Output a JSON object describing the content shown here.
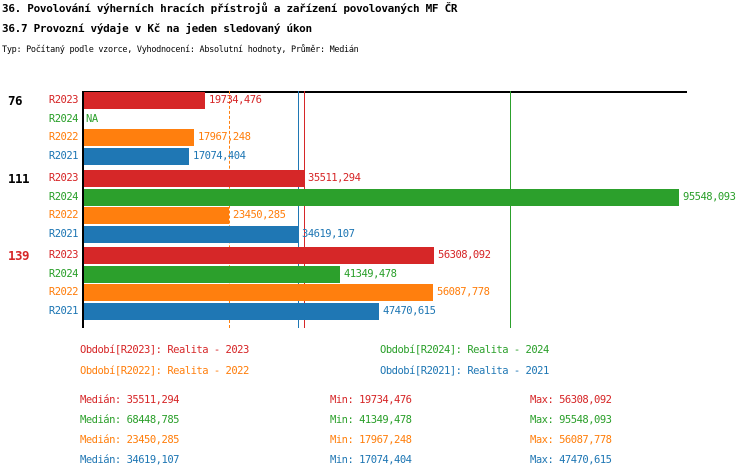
{
  "header": {
    "title": "36. Povolování výherních hracích přístrojů a zařízení povolovaných MF ČR",
    "subtitle": "36.7 Provozní výdaje v Kč na jeden sledovaný úkon",
    "meta": "Typ: Počítaný podle vzorce, Vyhodnocení: Absolutní hodnoty, Průměr: Medián"
  },
  "colors": {
    "R2023": "#d62728",
    "R2024": "#2ca02c",
    "R2022": "#ff7f0e",
    "R2021": "#1f77b4",
    "axis": "#000000",
    "group_label_default": "#000000",
    "group_label_highlight": "#d62728"
  },
  "chart_data": {
    "type": "bar",
    "orientation": "horizontal",
    "title": "36.7 Provozní výdaje v Kč na jeden sledovaný úkon",
    "xlabel": "",
    "ylabel": "",
    "xlim": [
      0,
      96640
    ],
    "grid": false,
    "series_order": [
      "R2023",
      "R2024",
      "R2022",
      "R2021"
    ],
    "groups": [
      {
        "label": "76",
        "label_color": "#000000",
        "bars": [
          {
            "series": "R2023",
            "value": 19734.476,
            "display": "19734,476"
          },
          {
            "series": "R2024",
            "value": null,
            "display": "NA"
          },
          {
            "series": "R2022",
            "value": 17967.248,
            "display": "17967,248"
          },
          {
            "series": "R2021",
            "value": 17074.404,
            "display": "17074,404"
          }
        ]
      },
      {
        "label": "111",
        "label_color": "#000000",
        "bars": [
          {
            "series": "R2023",
            "value": 35511.294,
            "display": "35511,294"
          },
          {
            "series": "R2024",
            "value": 95548.093,
            "display": "95548,093"
          },
          {
            "series": "R2022",
            "value": 23450.285,
            "display": "23450,285"
          },
          {
            "series": "R2021",
            "value": 34619.107,
            "display": "34619,107"
          }
        ]
      },
      {
        "label": "139",
        "label_color": "#d62728",
        "bars": [
          {
            "series": "R2023",
            "value": 56308.092,
            "display": "56308,092"
          },
          {
            "series": "R2024",
            "value": 41349.478,
            "display": "41349,478"
          },
          {
            "series": "R2022",
            "value": 56087.778,
            "display": "56087,778"
          },
          {
            "series": "R2021",
            "value": 47470.615,
            "display": "47470,615"
          }
        ]
      }
    ],
    "median_lines": [
      {
        "series": "R2022",
        "value": 23450.285,
        "style": "dashed"
      },
      {
        "series": "R2021",
        "value": 34619.107,
        "style": "solid"
      },
      {
        "series": "R2023",
        "value": 35511.294,
        "style": "solid"
      },
      {
        "series": "R2024",
        "value": 68448.785,
        "style": "solid"
      }
    ]
  },
  "legend": {
    "items": [
      {
        "series": "R2023",
        "text": "Období[R2023]: Realita - 2023"
      },
      {
        "series": "R2024",
        "text": "Období[R2024]: Realita - 2024"
      },
      {
        "series": "R2022",
        "text": "Období[R2022]: Realita - 2022"
      },
      {
        "series": "R2021",
        "text": "Období[R2021]: Realita - 2021"
      }
    ]
  },
  "stats": {
    "rows": [
      {
        "series": "R2023",
        "median": "Medián: 35511,294",
        "min": "Min: 19734,476",
        "max": "Max: 56308,092"
      },
      {
        "series": "R2024",
        "median": "Medián: 68448,785",
        "min": "Min: 41349,478",
        "max": "Max: 95548,093"
      },
      {
        "series": "R2022",
        "median": "Medián: 23450,285",
        "min": "Min: 17967,248",
        "max": "Max: 56087,778"
      },
      {
        "series": "R2021",
        "median": "Medián: 34619,107",
        "min": "Min: 17074,404",
        "max": "Max: 47470,615"
      }
    ]
  }
}
